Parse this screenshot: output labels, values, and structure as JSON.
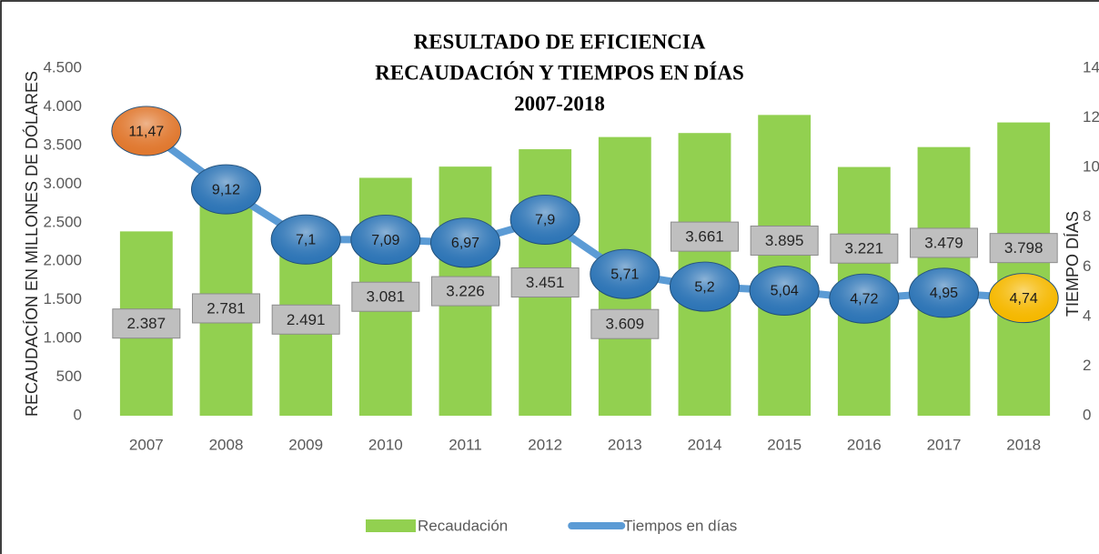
{
  "chart_data": {
    "type": "bar_line",
    "title": [
      "RESULTADO DE EFICIENCIA",
      "RECAUDACIÓN Y TIEMPOS EN DÍAS",
      "2007-2018"
    ],
    "ylabel": "RECAUDACÍON EN MILLONES DE DÓLARES",
    "y2label": "TIEMPO DÍAS",
    "categories": [
      "2007",
      "2008",
      "2009",
      "2010",
      "2011",
      "2012",
      "2013",
      "2014",
      "2015",
      "2016",
      "2017",
      "2018"
    ],
    "series": [
      {
        "name": "Recaudación",
        "type": "bar",
        "color": "#92d050",
        "values": [
          2387,
          2781,
          2491,
          3081,
          3226,
          3451,
          3609,
          3661,
          3895,
          3221,
          3479,
          3798
        ],
        "value_labels": [
          "2.387",
          "2.781",
          "2.491",
          "3.081",
          "3.226",
          "3.451",
          "3.609",
          "3.661",
          "3.895",
          "3.221",
          "3.479",
          "3.798"
        ]
      },
      {
        "name": "Tiempos en días",
        "type": "line",
        "axis": "y2",
        "color": "#5b9bd5",
        "values": [
          11.47,
          9.12,
          7.1,
          7.09,
          6.97,
          7.9,
          5.71,
          5.2,
          5.04,
          4.72,
          4.95,
          4.74
        ],
        "value_labels": [
          "11,47",
          "9,12",
          "7,1",
          "7,09",
          "6,97",
          "7,9",
          "5,71",
          "5,2",
          "5,04",
          "4,72",
          "4,95",
          "4,74"
        ],
        "point_colors": [
          "#e0782f",
          "#2e75b6",
          "#2e75b6",
          "#2e75b6",
          "#2e75b6",
          "#2e75b6",
          "#2e75b6",
          "#2e75b6",
          "#2e75b6",
          "#2e75b6",
          "#2e75b6",
          "#f5b800"
        ]
      }
    ],
    "ylim": [
      0,
      4500
    ],
    "yticks": [
      0,
      500,
      {
        "value": 1000,
        "label": "1.000"
      },
      {
        "value": 1500,
        "label": "1.500"
      },
      {
        "value": 2000,
        "label": "2.000"
      },
      {
        "value": 2500,
        "label": "2.500"
      },
      {
        "value": 3000,
        "label": "3.000"
      },
      {
        "value": 3500,
        "label": "3.500"
      },
      {
        "value": 4000,
        "label": "4.000"
      },
      {
        "value": 4500,
        "label": "4.500"
      }
    ],
    "y2lim": [
      0,
      14
    ],
    "y2ticks": [
      0,
      2,
      4,
      6,
      8,
      10,
      12,
      14
    ],
    "legend": "bottom"
  }
}
